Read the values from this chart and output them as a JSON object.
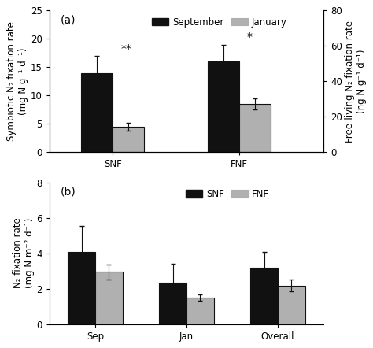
{
  "panel_a": {
    "groups": [
      "SNF",
      "FNF"
    ],
    "sep_values": [
      14.0,
      16.0
    ],
    "sep_errors": [
      3.0,
      3.0
    ],
    "jan_values": [
      4.5,
      8.5
    ],
    "jan_errors": [
      0.7,
      1.0
    ],
    "ylim_left": [
      0,
      25
    ],
    "ylim_right": [
      0,
      80
    ],
    "yticks_left": [
      0,
      5,
      10,
      15,
      20,
      25
    ],
    "yticks_right": [
      0,
      20,
      40,
      60,
      80
    ],
    "ylabel_left": "Symbiotic N₂ fixation rate\n(mg N g⁻¹ d⁻¹)",
    "ylabel_right": "Free-living N₂ fixation rate\n(ng N g⁻¹ d⁻¹)",
    "annotations": [
      "**",
      "*"
    ],
    "annot_offsets": [
      0.3,
      0.3
    ],
    "label": "(a)",
    "legend_labels": [
      "September",
      "January"
    ]
  },
  "panel_b": {
    "groups": [
      "Sep",
      "Jan",
      "Overall"
    ],
    "snf_values": [
      4.05,
      2.35,
      3.2
    ],
    "snf_errors": [
      1.5,
      1.05,
      0.85
    ],
    "fnf_values": [
      2.95,
      1.5,
      2.18
    ],
    "fnf_errors": [
      0.42,
      0.18,
      0.35
    ],
    "ylim": [
      0,
      8
    ],
    "yticks": [
      0,
      2,
      4,
      6,
      8
    ],
    "ylabel": "N₂ fixation rate\n(mg N m⁻² d⁻¹)",
    "label": "(b)",
    "legend_labels": [
      "SNF",
      "FNF"
    ]
  },
  "bar_width": 0.3,
  "black_color": "#111111",
  "gray_color": "#b0b0b0",
  "edge_color": "#111111",
  "bg_color": "#ffffff",
  "font_size": 9,
  "label_font_size": 8.5
}
